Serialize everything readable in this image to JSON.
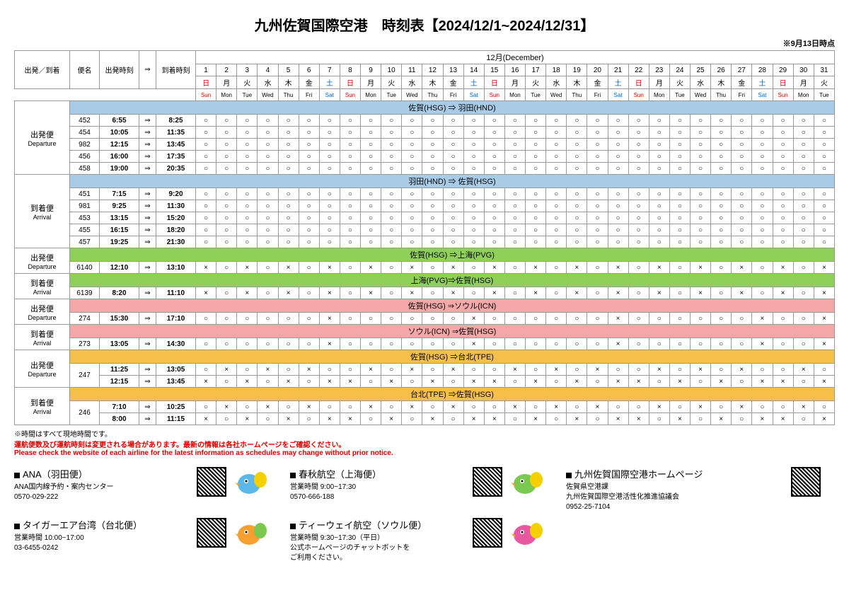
{
  "title": "九州佐賀国際空港　時刻表【2024/12/1~2024/12/31】",
  "asof": "※9月13日時点",
  "month_label": "12月(December)",
  "header_labels": {
    "depArr": "出発／到着",
    "flight": "便名",
    "depTime": "出発時刻",
    "arrow": "⇒",
    "arrTime": "到着時刻"
  },
  "days": [
    1,
    2,
    3,
    4,
    5,
    6,
    7,
    8,
    9,
    10,
    11,
    12,
    13,
    14,
    15,
    16,
    17,
    18,
    19,
    20,
    21,
    22,
    23,
    24,
    25,
    26,
    27,
    28,
    29,
    30,
    31
  ],
  "dow_jp": [
    "日",
    "月",
    "火",
    "水",
    "木",
    "金",
    "土",
    "日",
    "月",
    "火",
    "水",
    "木",
    "金",
    "土",
    "日",
    "月",
    "火",
    "水",
    "木",
    "金",
    "土",
    "日",
    "月",
    "火",
    "水",
    "木",
    "金",
    "土",
    "日",
    "月",
    "火"
  ],
  "dow_en": [
    "Sun",
    "Mon",
    "Tue",
    "Wed",
    "Thu",
    "Fri",
    "Sat",
    "Sun",
    "Mon",
    "Tue",
    "Wed",
    "Thu",
    "Fri",
    "Sat",
    "Sun",
    "Mon",
    "Tue",
    "Wed",
    "Thu",
    "Fri",
    "Sat",
    "Sun",
    "Mon",
    "Tue",
    "Wed",
    "Thu",
    "Fri",
    "Sat",
    "Sun",
    "Mon",
    "Tue"
  ],
  "dow_type": [
    "sun",
    "",
    "",
    "",
    "",
    "",
    "sat",
    "sun",
    "",
    "",
    "",
    "",
    "",
    "sat",
    "sun",
    "",
    "",
    "",
    "",
    "",
    "sat",
    "sun",
    "",
    "",
    "",
    "",
    "",
    "sat",
    "sun",
    "",
    ""
  ],
  "sections": [
    {
      "color": "route-blue",
      "groups": [
        {
          "cat_jp": "出発便",
          "cat_en": "Departure",
          "route": "佐賀(HSG) ⇒ 羽田(HND)",
          "flights": [
            {
              "no": "452",
              "dep": "6:55",
              "arr": "8:25",
              "ops": "OOOOOOOOOOOOOOOOOOOOOOOOOOOOOOO"
            },
            {
              "no": "454",
              "dep": "10:05",
              "arr": "11:35",
              "ops": "OOOOOOOOOOOOOOOOOOOOOOOOOOOOOOO"
            },
            {
              "no": "982",
              "dep": "12:15",
              "arr": "13:45",
              "ops": "OOOOOOOOOOOOOOOOOOOOOOOOOOOOOOO"
            },
            {
              "no": "456",
              "dep": "16:00",
              "arr": "17:35",
              "ops": "OOOOOOOOOOOOOOOOOOOOOOOOOOOOOOO"
            },
            {
              "no": "458",
              "dep": "19:00",
              "arr": "20:35",
              "ops": "OOOOOOOOOOOOOOOOOOOOOOOOOOOOOOO"
            }
          ]
        },
        {
          "cat_jp": "到着便",
          "cat_en": "Arrival",
          "route": "羽田(HND) ⇒ 佐賀(HSG)",
          "flights": [
            {
              "no": "451",
              "dep": "7:15",
              "arr": "9:20",
              "ops": "OOOOOOOOOOOOOOOOOOOOOOOOOOOOOOO"
            },
            {
              "no": "981",
              "dep": "9:25",
              "arr": "11:30",
              "ops": "OOOOOOOOOOOOOOOOOOOOOOOOOOOOOOO"
            },
            {
              "no": "453",
              "dep": "13:15",
              "arr": "15:20",
              "ops": "OOOOOOOOOOOOOOOOOOOOOOOOOOOOOOO"
            },
            {
              "no": "455",
              "dep": "16:15",
              "arr": "18:20",
              "ops": "OOOOOOOOOOOOOOOOOOOOOOOOOOOOOOO"
            },
            {
              "no": "457",
              "dep": "19:25",
              "arr": "21:30",
              "ops": "OOOOOOOOOOOOOOOOOOOOOOOOOOOOOOO"
            }
          ]
        }
      ]
    },
    {
      "color": "route-green",
      "groups": [
        {
          "cat_jp": "出発便",
          "cat_en": "Departure",
          "route": "佐賀(HSG) ⇒上海(PVG)",
          "flights": [
            {
              "no": "6140",
              "dep": "12:10",
              "arr": "13:10",
              "ops": "XOXOXOXOXOXOXOXOXOXOXOXOXOXOXOX"
            }
          ]
        },
        {
          "cat_jp": "到着便",
          "cat_en": "Arrival",
          "route": "上海(PVG)⇒佐賀(HSG)",
          "flights": [
            {
              "no": "6139",
              "dep": "8:20",
              "arr": "11:10",
              "ops": "XOXOXOXOXOXOXOXOXOXOXOXOXOXOXOX"
            }
          ]
        }
      ]
    },
    {
      "color": "route-red",
      "groups": [
        {
          "cat_jp": "出発便",
          "cat_en": "Departure",
          "route": "佐賀(HSG) ⇒ソウル(ICN)",
          "flights": [
            {
              "no": "274",
              "dep": "15:30",
              "arr": "17:10",
              "ops": "OOOOOOXOOOOOOXOOOOOOXOOOOOOXOOX"
            }
          ]
        },
        {
          "cat_jp": "到着便",
          "cat_en": "Arrival",
          "route": "ソウル(ICN) ⇒佐賀(HSG)",
          "flights": [
            {
              "no": "273",
              "dep": "13:05",
              "arr": "14:30",
              "ops": "OOOOOOXOOOOOOXOOOOOOXOOOOOOXOOX"
            }
          ]
        }
      ]
    },
    {
      "color": "route-orange",
      "groups": [
        {
          "cat_jp": "出発便",
          "cat_en": "Departure",
          "route": "佐賀(HSG) ⇒台北(TPE)",
          "flights": [
            {
              "no": "247",
              "rowspan": 2,
              "dep": "11:25",
              "arr": "13:05",
              "ops": "OXOXOXOOXOXOXOOXOXOXOOXOXOXOOXO"
            },
            {
              "no": "",
              "dep": "12:15",
              "arr": "13:45",
              "ops": "XOXOXOXXOXOXOXXOXOXOXXOXOXOXXOX"
            }
          ]
        },
        {
          "cat_jp": "到着便",
          "cat_en": "Arrival",
          "route": "台北(TPE) ⇒佐賀(HSG)",
          "flights": [
            {
              "no": "246",
              "rowspan": 2,
              "dep": "7:10",
              "arr": "10:25",
              "ops": "OXOXOXOOXOXOXOOXOXOXOOXOXOXOOXO"
            },
            {
              "no": "",
              "dep": "8:00",
              "arr": "11:15",
              "ops": "XOXOXOXXOXOXOXXOXOXOXXOXOXOXXOX"
            }
          ]
        }
      ]
    }
  ],
  "notes": {
    "n1": "※時間はすべて現地時間です。",
    "n2": "運航便数及び運航時刻は変更される場合があります。最新の情報は各社ホームページをご確認ください。",
    "n3": "Please check the website of each airline for the latest information as schedules may change without prior notice."
  },
  "airlines": [
    {
      "title": "ANA（羽田便）",
      "lines": [
        "ANA国内線予約・案内センター",
        "0570-029-222"
      ],
      "mascot": "blue"
    },
    {
      "title": "春秋航空（上海便）",
      "lines": [
        "営業時間 9:00~17:30",
        "0570-666-188"
      ],
      "mascot": "green"
    },
    {
      "title": "九州佐賀国際空港ホームページ",
      "lines": [
        "佐賀県空港課",
        "九州佐賀国際空港活性化推進協議会",
        "0952-25-7104"
      ],
      "mascot": null,
      "noqr": false
    },
    {
      "title": "タイガーエア台湾（台北便）",
      "lines": [
        "営業時間 10:00~17:00",
        "03-6455-0242"
      ],
      "mascot": "orange"
    },
    {
      "title": "ティーウェイ航空（ソウル便）",
      "lines": [
        "営業時間 9:30~17:30（平日）",
        "公式ホームページのチャットボットを",
        "ご利用ください。"
      ],
      "mascot": "pink"
    }
  ],
  "colors": {
    "route_blue": "#a8cce8",
    "route_green": "#8fd158",
    "route_red": "#f5a8a8",
    "route_orange": "#f5c04a"
  }
}
